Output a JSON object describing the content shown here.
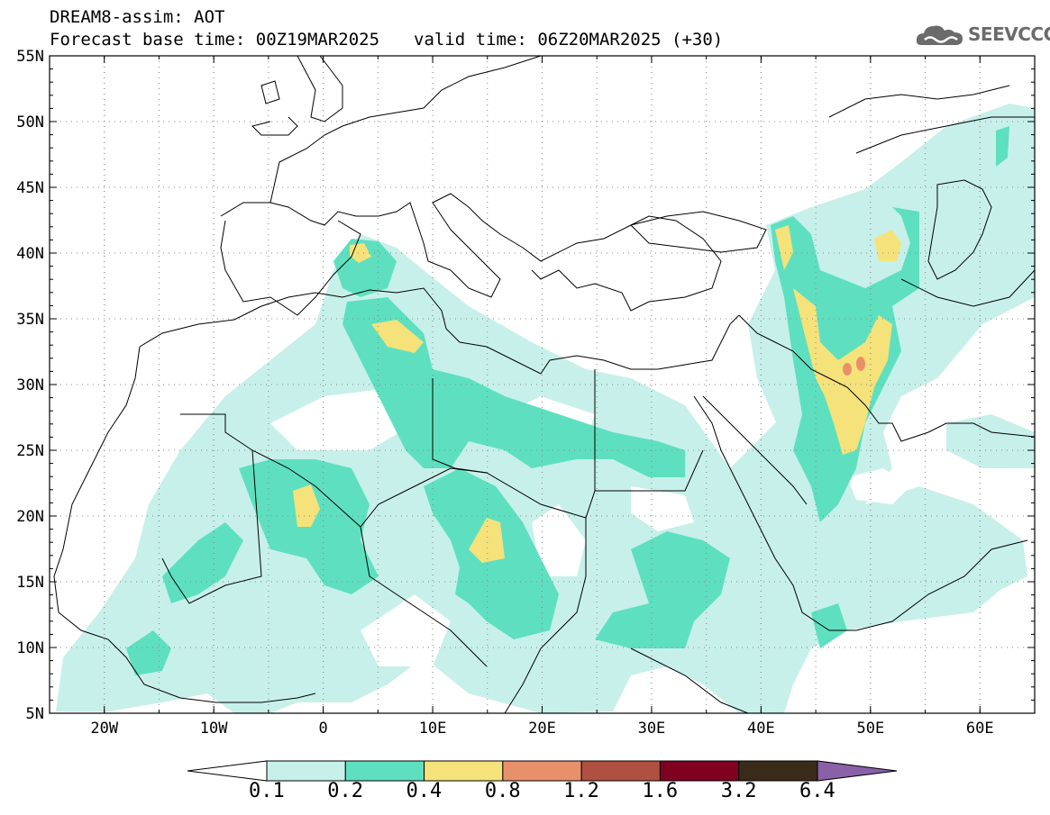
{
  "header": {
    "line1": "DREAM8-assim: AOT",
    "base_time_label": "Forecast base time: 00Z19MAR2025",
    "valid_time_label": "valid time: 06Z20MAR2025 (+30)"
  },
  "logo": {
    "text": "SEEVCCC",
    "icon": "cloud-logo-icon",
    "color": "#6b6b6b"
  },
  "map": {
    "lon_range": [
      -25,
      65
    ],
    "lat_range": [
      5,
      55
    ],
    "lat_ticks": [
      "55N",
      "50N",
      "45N",
      "40N",
      "35N",
      "30N",
      "25N",
      "20N",
      "15N",
      "10N",
      "5N"
    ],
    "lon_ticks": [
      "20W",
      "10W",
      "0",
      "10E",
      "20E",
      "30E",
      "40E",
      "50E",
      "60E"
    ]
  },
  "colorbar": {
    "colors": [
      "#c7f0ea",
      "#5ee0c0",
      "#f5e27a",
      "#e8906a",
      "#b05040",
      "#800020",
      "#3a2a1a",
      "#8a60a8"
    ],
    "labels": [
      "0.1",
      "0.2",
      "0.4",
      "0.8",
      "1.2",
      "1.6",
      "3.2",
      "6.4"
    ]
  }
}
